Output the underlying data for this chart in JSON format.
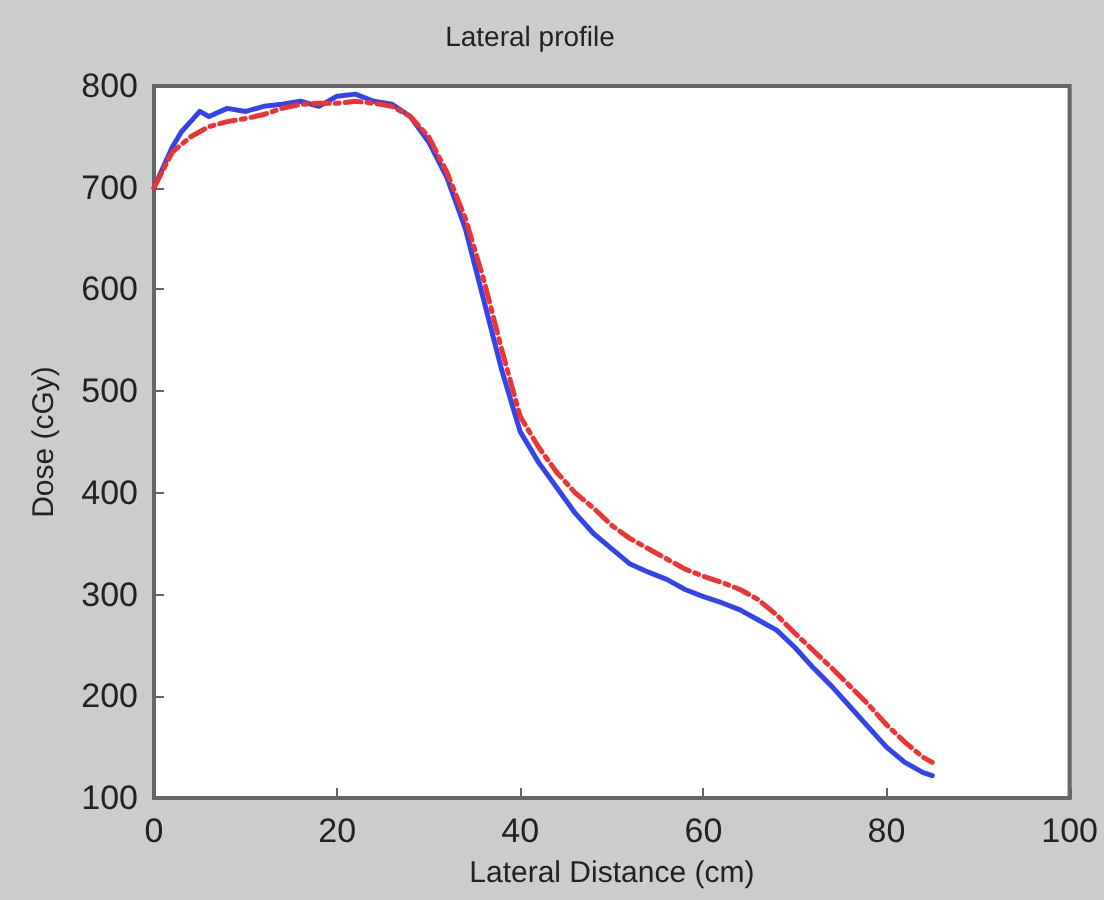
{
  "chart_data": {
    "type": "line",
    "title": "Lateral profile",
    "xlabel": "Lateral Distance (cm)",
    "ylabel": "Dose (cGy)",
    "xlim": [
      0,
      100
    ],
    "xticks": [
      0,
      20,
      40,
      60,
      80,
      100
    ],
    "ylim": [
      100,
      800
    ],
    "yticks": [
      100,
      200,
      300,
      400,
      500,
      600,
      700,
      800
    ],
    "grid": false,
    "marker": "none",
    "series": [
      {
        "color": "#3344ee",
        "line_style": "solid",
        "x": [
          0,
          1,
          2,
          3,
          4,
          5,
          6,
          8,
          10,
          12,
          14,
          16,
          18,
          20,
          22,
          24,
          26,
          28,
          30,
          32,
          34,
          36,
          38,
          40,
          42,
          44,
          46,
          48,
          50,
          52,
          54,
          56,
          58,
          60,
          62,
          64,
          66,
          68,
          70,
          72,
          74,
          76,
          78,
          80,
          82,
          84,
          85
        ],
        "values": [
          700,
          720,
          740,
          755,
          765,
          775,
          770,
          778,
          775,
          780,
          782,
          785,
          780,
          790,
          792,
          785,
          782,
          770,
          745,
          710,
          660,
          590,
          520,
          460,
          430,
          405,
          380,
          360,
          345,
          330,
          322,
          315,
          305,
          298,
          292,
          285,
          275,
          265,
          248,
          228,
          210,
          190,
          170,
          150,
          135,
          125,
          122
        ]
      },
      {
        "color": "#ee3333",
        "line_style": "dashed",
        "x": [
          0,
          2,
          4,
          6,
          8,
          10,
          12,
          14,
          16,
          18,
          20,
          22,
          24,
          26,
          28,
          30,
          32,
          34,
          36,
          38,
          40,
          42,
          44,
          46,
          48,
          50,
          52,
          54,
          56,
          58,
          60,
          62,
          64,
          66,
          68,
          70,
          72,
          74,
          76,
          78,
          80,
          82,
          84,
          85
        ],
        "values": [
          700,
          735,
          750,
          760,
          765,
          768,
          772,
          778,
          782,
          783,
          783,
          785,
          783,
          780,
          770,
          750,
          715,
          670,
          610,
          540,
          475,
          445,
          420,
          400,
          385,
          368,
          355,
          345,
          335,
          325,
          318,
          312,
          305,
          295,
          280,
          262,
          245,
          228,
          210,
          192,
          172,
          155,
          140,
          135
        ]
      }
    ]
  }
}
